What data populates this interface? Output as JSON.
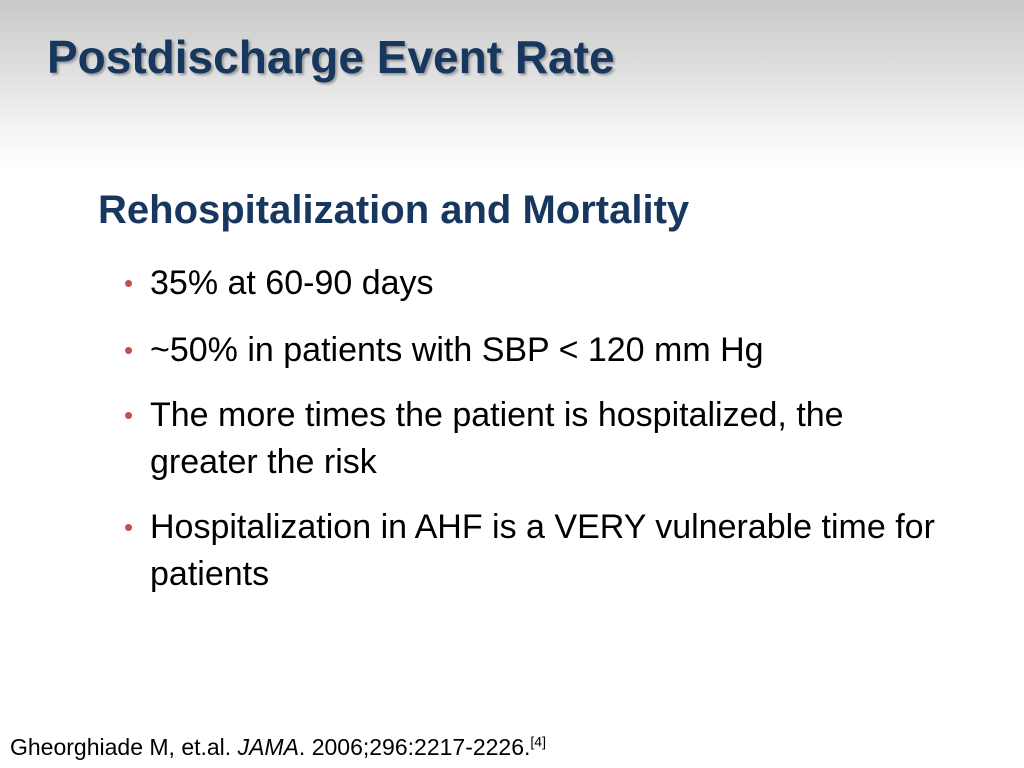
{
  "slide": {
    "title": "Postdischarge Event Rate",
    "section_heading": "Rehospitalization and Mortality",
    "bullets": [
      "35% at 60-90 days",
      "~50% in patients with SBP < 120 mm Hg",
      "The more times the patient is hospitalized, the greater the risk",
      "Hospitalization in AHF is a VERY vulnerable time for patients"
    ],
    "bullet_glyph": "•",
    "citation": {
      "authors": "Gheorghiade M, et.al. ",
      "journal": "JAMA",
      "details": ". 2006;296:2217-2226.",
      "ref": "[4]"
    }
  },
  "colors": {
    "title": "#17375e",
    "bullet": "#c0504d",
    "body_text": "#000000"
  }
}
